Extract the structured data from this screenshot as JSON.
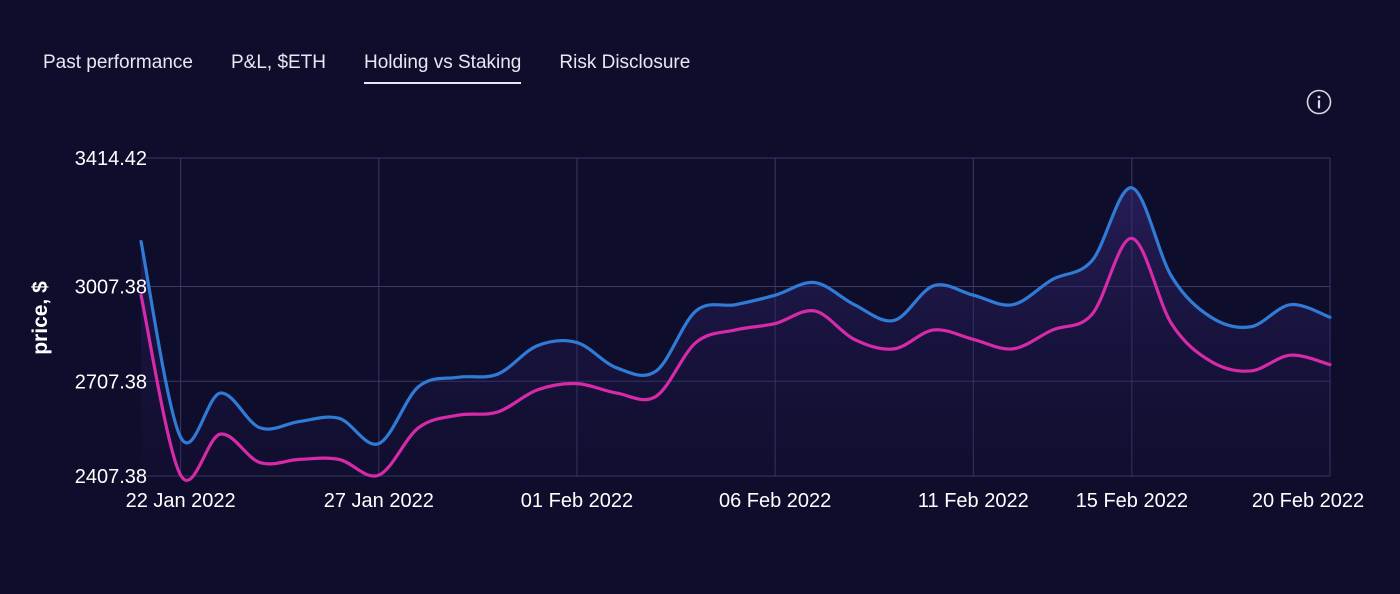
{
  "tabs": [
    {
      "label": "Past performance",
      "active": false
    },
    {
      "label": "P&L, $ETH",
      "active": false
    },
    {
      "label": "Holding vs Staking",
      "active": true
    },
    {
      "label": "Risk Disclosure",
      "active": false
    }
  ],
  "info_icon": "info-circle-icon",
  "colors": {
    "background": "#0f0d2c",
    "staking_line": "#2f7bd6",
    "holding_line": "#d62aa8",
    "grid": "#3b3866"
  },
  "chart_data": {
    "type": "line",
    "ylabel": "price, $",
    "xlabel": "",
    "y_ticks": [
      3414.42,
      3007.38,
      2707.38,
      2407.38
    ],
    "y_tick_labels": [
      "3414.42",
      "3007.38",
      "2707.38",
      "2407.38"
    ],
    "ylim": [
      2407.38,
      3414.42
    ],
    "x_ticks": [
      "22 Jan 2022",
      "27 Jan 2022",
      "01 Feb 2022",
      "06 Feb 2022",
      "11 Feb 2022",
      "15 Feb 2022",
      "20 Feb 2022"
    ],
    "x_tick_days": [
      1,
      6,
      11,
      16,
      21,
      25,
      30
    ],
    "xlim": [
      0,
      30
    ],
    "grid": true,
    "legend": "none",
    "series": [
      {
        "x": [
          0,
          1,
          2,
          3,
          4,
          5,
          6,
          7,
          8,
          9,
          10,
          11,
          12,
          13,
          14,
          15,
          16,
          17,
          18,
          19,
          20,
          21,
          22,
          23,
          24,
          25,
          26,
          27,
          28,
          29,
          30
        ],
        "values": [
          3150,
          2530,
          2670,
          2560,
          2580,
          2590,
          2510,
          2690,
          2720,
          2730,
          2820,
          2830,
          2750,
          2740,
          2930,
          2950,
          2980,
          3020,
          2950,
          2900,
          3010,
          2980,
          2950,
          3030,
          3090,
          3320,
          3040,
          2910,
          2880,
          2950,
          2910
        ],
        "color": "#2f7bd6"
      },
      {
        "x": [
          0,
          1,
          2,
          3,
          4,
          5,
          6,
          7,
          8,
          9,
          10,
          11,
          12,
          13,
          14,
          15,
          16,
          17,
          18,
          19,
          20,
          21,
          22,
          23,
          24,
          25,
          26,
          27,
          28,
          29,
          30
        ],
        "values": [
          2980,
          2410,
          2540,
          2450,
          2460,
          2460,
          2410,
          2560,
          2600,
          2610,
          2680,
          2700,
          2670,
          2660,
          2830,
          2870,
          2890,
          2930,
          2840,
          2810,
          2870,
          2840,
          2810,
          2870,
          2920,
          3160,
          2890,
          2770,
          2740,
          2790,
          2760
        ],
        "color": "#d62aa8"
      }
    ]
  }
}
